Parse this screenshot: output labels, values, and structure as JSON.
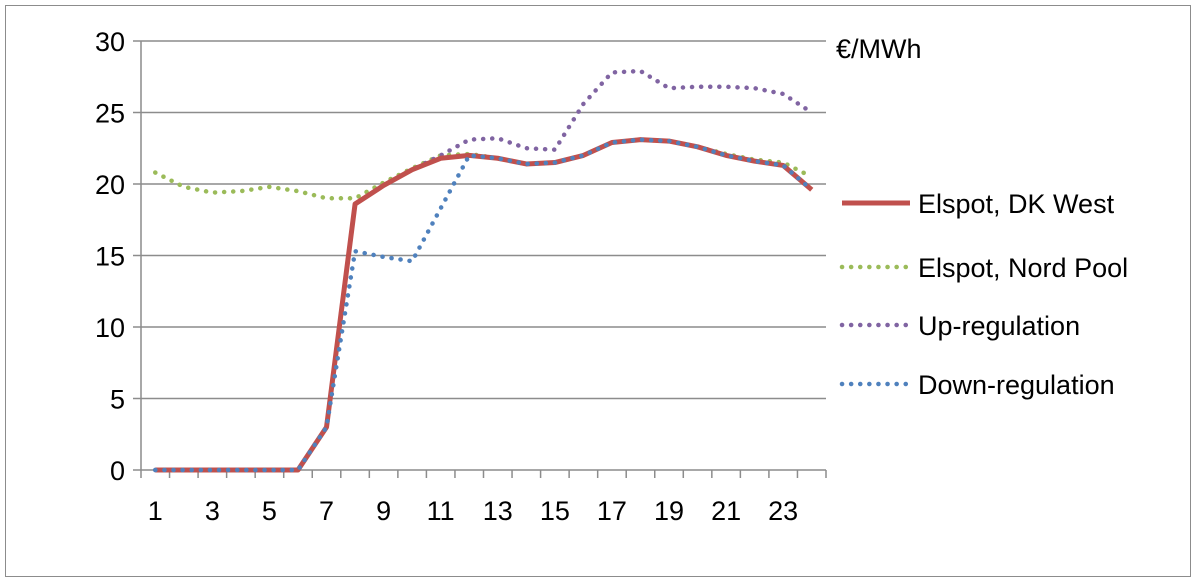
{
  "chart_data": {
    "type": "line",
    "title": "",
    "xlabel": "",
    "ylabel": "€/MWh",
    "x": [
      1,
      2,
      3,
      4,
      5,
      6,
      7,
      8,
      9,
      10,
      11,
      12,
      13,
      14,
      15,
      16,
      17,
      18,
      19,
      20,
      21,
      22,
      23,
      24
    ],
    "x_tick_labels": [
      "1",
      "3",
      "5",
      "7",
      "9",
      "11",
      "13",
      "15",
      "17",
      "19",
      "21",
      "23"
    ],
    "y_ticks": [
      0,
      5,
      10,
      15,
      20,
      25,
      30
    ],
    "ylim": [
      0,
      30
    ],
    "grid": "horizontal",
    "legend_position": "right",
    "series": [
      {
        "name": "Elspot, DK West",
        "color": "#c0504d",
        "style": "solid",
        "values": [
          0,
          0,
          0,
          0,
          0,
          0,
          3,
          18.6,
          19.9,
          21.0,
          21.8,
          22.0,
          21.8,
          21.4,
          21.5,
          22.0,
          22.9,
          23.1,
          23.0,
          22.6,
          22.0,
          21.6,
          21.3,
          19.6
        ]
      },
      {
        "name": "Elspot, Nord Pool",
        "color": "#9bbb59",
        "style": "dotted",
        "values": [
          20.8,
          19.8,
          19.4,
          19.5,
          19.8,
          19.5,
          19.0,
          19.0,
          20.1,
          21.1,
          22.0,
          22.1,
          21.8,
          21.4,
          21.5,
          22.0,
          22.9,
          23.1,
          23.0,
          22.6,
          22.1,
          21.7,
          21.5,
          20.5
        ]
      },
      {
        "name": "Up-regulation",
        "color": "#8064a2",
        "style": "dotted",
        "values": [
          0,
          0,
          0,
          0,
          0,
          0,
          3,
          18.6,
          19.9,
          21.0,
          22.0,
          23.1,
          23.2,
          22.5,
          22.4,
          25.6,
          27.8,
          27.9,
          26.7,
          26.8,
          26.8,
          26.7,
          26.3,
          25.0
        ]
      },
      {
        "name": "Down-regulation",
        "color": "#4f81bd",
        "style": "dotted",
        "values": [
          0,
          0,
          0,
          0,
          0,
          0,
          3,
          15.3,
          14.9,
          14.6,
          18.3,
          22.0,
          21.8,
          21.4,
          21.5,
          22.0,
          22.9,
          23.1,
          23.0,
          22.6,
          22.0,
          21.6,
          21.3,
          19.6
        ]
      }
    ]
  }
}
